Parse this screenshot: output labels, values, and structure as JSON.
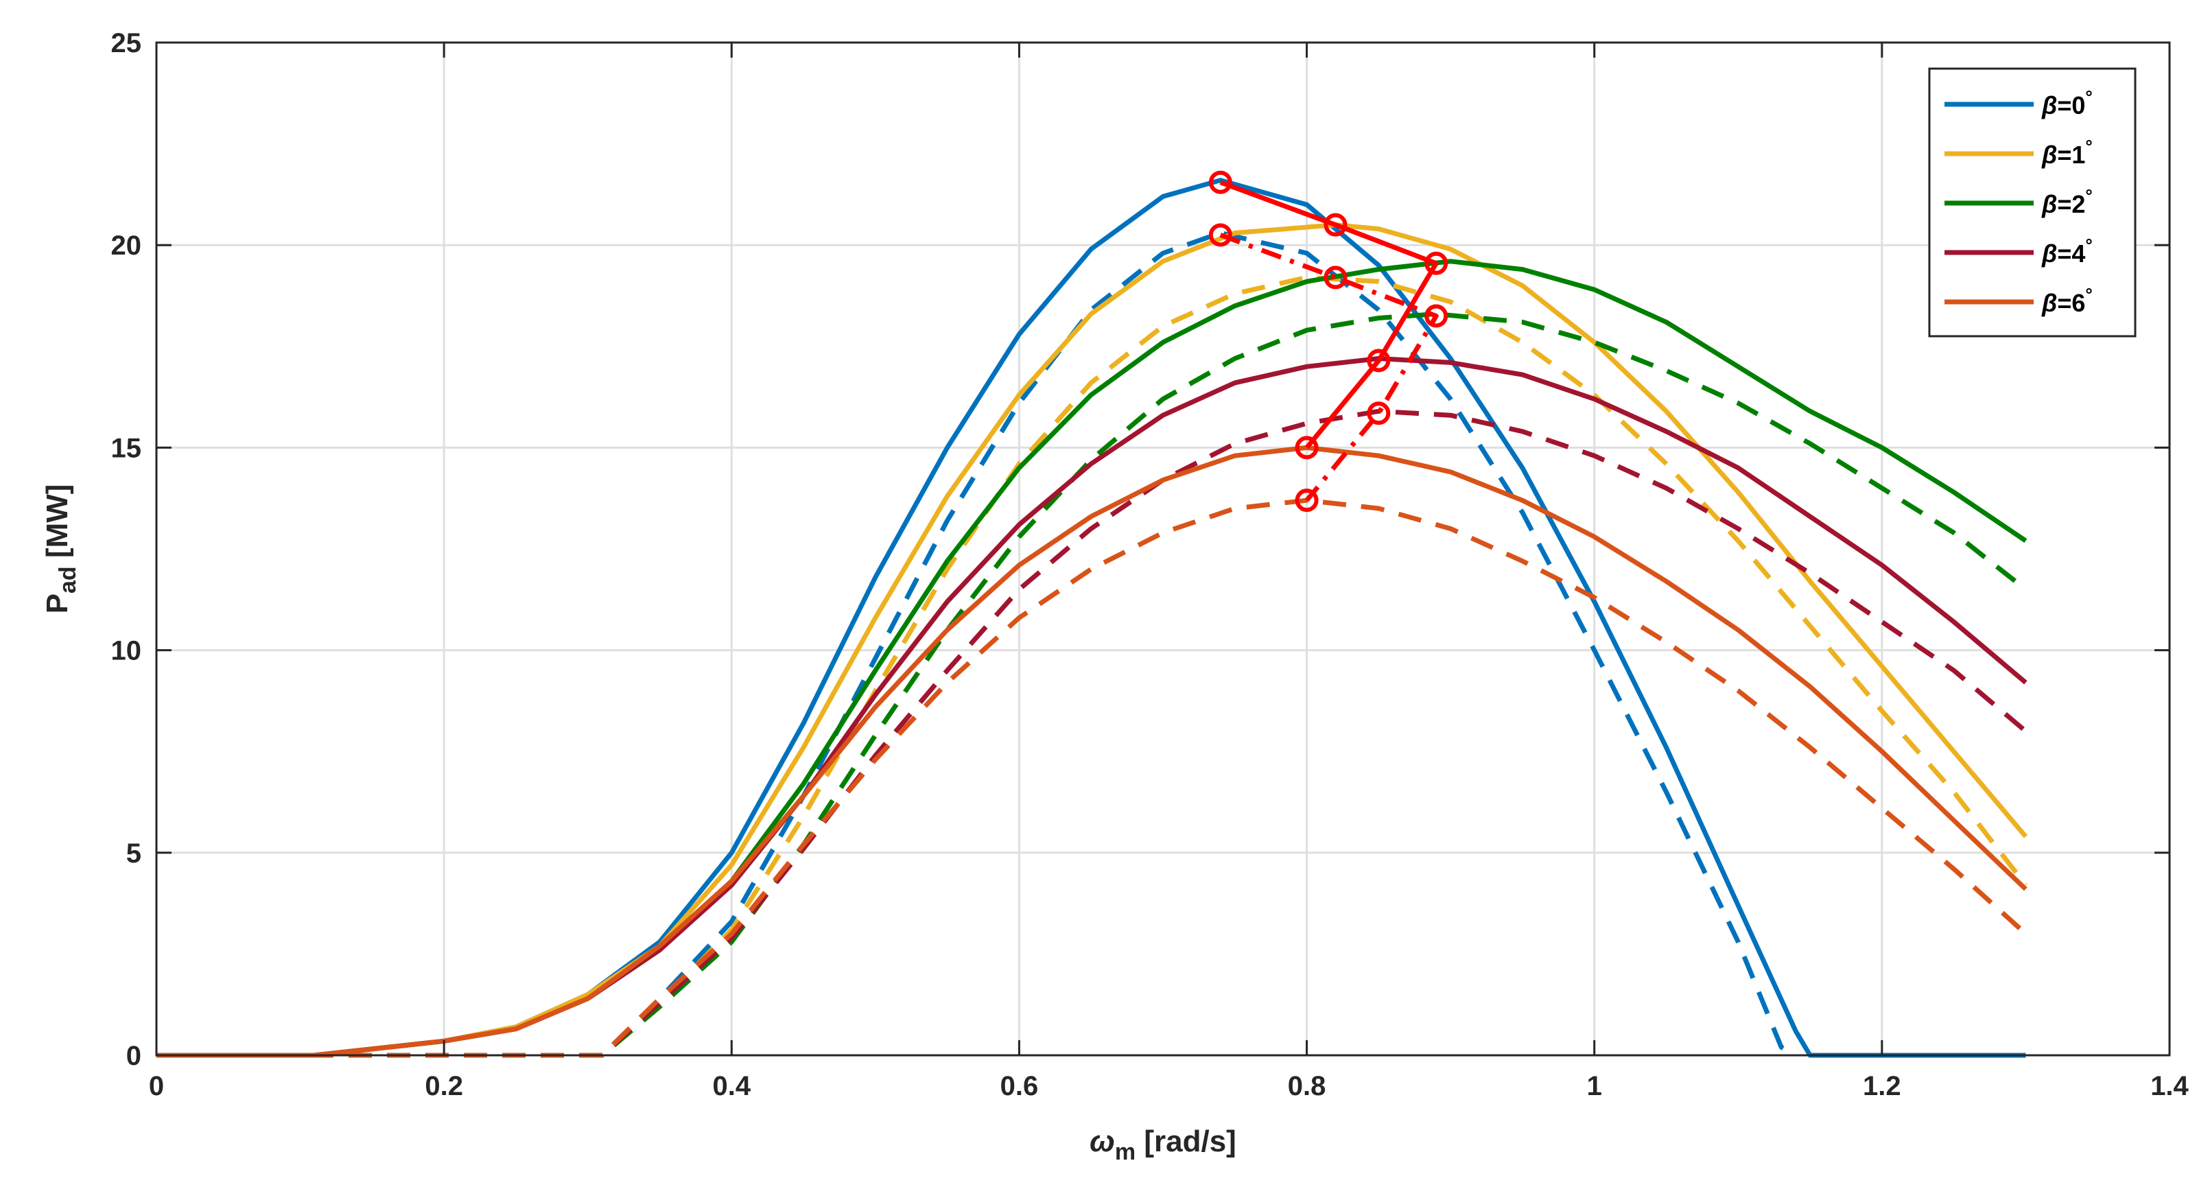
{
  "chart_data": {
    "type": "line",
    "title": "",
    "xlabel": "ω_m [rad/s]",
    "xlabel_symbol": "ω",
    "xlabel_sub": "m",
    "xlabel_unit": "[rad/s]",
    "ylabel": "P_ad [MW]",
    "ylabel_main": "P",
    "ylabel_sub": "ad",
    "ylabel_unit": "[MW]",
    "xlim": [
      0,
      1.4
    ],
    "ylim": [
      0,
      25
    ],
    "xticks": [
      0,
      0.2,
      0.4,
      0.6,
      0.8,
      1,
      1.2,
      1.4
    ],
    "xtick_labels": [
      "0",
      "0.2",
      "0.4",
      "0.6",
      "0.8",
      "1",
      "1.2",
      "1.4"
    ],
    "yticks": [
      0,
      5,
      10,
      15,
      20,
      25
    ],
    "ytick_labels": [
      "0",
      "5",
      "10",
      "15",
      "20",
      "25"
    ],
    "grid": true,
    "legend_position": "top-right",
    "legend": [
      {
        "label_prefix": "β",
        "label_value": "=0",
        "label_degree": "°",
        "color": "#0072BD"
      },
      {
        "label_prefix": "β",
        "label_value": "=1",
        "label_degree": "°",
        "color": "#EDB120"
      },
      {
        "label_prefix": "β",
        "label_value": "=2",
        "label_degree": "°",
        "color": "#008000"
      },
      {
        "label_prefix": "β",
        "label_value": "=4",
        "label_degree": "°",
        "color": "#A2142F"
      },
      {
        "label_prefix": "β",
        "label_value": "=6",
        "label_degree": "°",
        "color": "#D95319"
      }
    ],
    "series": [
      {
        "name": "β=0° solid",
        "color": "#0072BD",
        "dash": "solid",
        "points": [
          [
            0,
            0
          ],
          [
            0.11,
            0
          ],
          [
            0.2,
            0.35
          ],
          [
            0.25,
            0.7
          ],
          [
            0.3,
            1.5
          ],
          [
            0.35,
            2.8
          ],
          [
            0.4,
            5.0
          ],
          [
            0.45,
            8.2
          ],
          [
            0.5,
            11.8
          ],
          [
            0.55,
            15.0
          ],
          [
            0.6,
            17.8
          ],
          [
            0.65,
            19.9
          ],
          [
            0.7,
            21.2
          ],
          [
            0.74,
            21.6
          ],
          [
            0.8,
            21.0
          ],
          [
            0.85,
            19.5
          ],
          [
            0.9,
            17.2
          ],
          [
            0.95,
            14.5
          ],
          [
            1.0,
            11.2
          ],
          [
            1.05,
            7.6
          ],
          [
            1.1,
            3.7
          ],
          [
            1.14,
            0.6
          ],
          [
            1.15,
            0
          ],
          [
            1.3,
            0
          ]
        ]
      },
      {
        "name": "β=0° dashed",
        "color": "#0072BD",
        "dash": "dashed",
        "points": [
          [
            0,
            0
          ],
          [
            0.31,
            0
          ],
          [
            0.35,
            1.4
          ],
          [
            0.4,
            3.3
          ],
          [
            0.45,
            6.4
          ],
          [
            0.5,
            9.8
          ],
          [
            0.55,
            13.2
          ],
          [
            0.6,
            16.1
          ],
          [
            0.65,
            18.4
          ],
          [
            0.7,
            19.8
          ],
          [
            0.74,
            20.3
          ],
          [
            0.8,
            19.8
          ],
          [
            0.85,
            18.4
          ],
          [
            0.9,
            16.2
          ],
          [
            0.95,
            13.4
          ],
          [
            1.0,
            10.0
          ],
          [
            1.05,
            6.5
          ],
          [
            1.1,
            2.8
          ],
          [
            1.13,
            0.2
          ],
          [
            1.14,
            0
          ]
        ]
      },
      {
        "name": "β=1° solid",
        "color": "#EDB120",
        "dash": "solid",
        "points": [
          [
            0,
            0
          ],
          [
            0.11,
            0
          ],
          [
            0.2,
            0.35
          ],
          [
            0.25,
            0.7
          ],
          [
            0.3,
            1.5
          ],
          [
            0.35,
            2.7
          ],
          [
            0.4,
            4.7
          ],
          [
            0.45,
            7.6
          ],
          [
            0.5,
            10.8
          ],
          [
            0.55,
            13.8
          ],
          [
            0.6,
            16.3
          ],
          [
            0.65,
            18.3
          ],
          [
            0.7,
            19.6
          ],
          [
            0.75,
            20.3
          ],
          [
            0.82,
            20.5
          ],
          [
            0.85,
            20.4
          ],
          [
            0.9,
            19.9
          ],
          [
            0.95,
            19.0
          ],
          [
            1.0,
            17.6
          ],
          [
            1.05,
            15.9
          ],
          [
            1.1,
            13.9
          ],
          [
            1.15,
            11.7
          ],
          [
            1.2,
            9.6
          ],
          [
            1.25,
            7.5
          ],
          [
            1.3,
            5.4
          ]
        ]
      },
      {
        "name": "β=1° dashed",
        "color": "#EDB120",
        "dash": "dashed",
        "points": [
          [
            0,
            0
          ],
          [
            0.31,
            0
          ],
          [
            0.35,
            1.3
          ],
          [
            0.4,
            3.1
          ],
          [
            0.45,
            5.9
          ],
          [
            0.5,
            9.0
          ],
          [
            0.55,
            12.0
          ],
          [
            0.6,
            14.6
          ],
          [
            0.65,
            16.6
          ],
          [
            0.7,
            18.0
          ],
          [
            0.75,
            18.8
          ],
          [
            0.8,
            19.2
          ],
          [
            0.85,
            19.1
          ],
          [
            0.9,
            18.6
          ],
          [
            0.95,
            17.6
          ],
          [
            1.0,
            16.3
          ],
          [
            1.05,
            14.6
          ],
          [
            1.1,
            12.7
          ],
          [
            1.15,
            10.6
          ],
          [
            1.2,
            8.5
          ],
          [
            1.25,
            6.5
          ],
          [
            1.3,
            4.2
          ]
        ]
      },
      {
        "name": "β=2° solid",
        "color": "#008000",
        "dash": "solid",
        "points": [
          [
            0,
            0
          ],
          [
            0.11,
            0
          ],
          [
            0.2,
            0.35
          ],
          [
            0.25,
            0.65
          ],
          [
            0.3,
            1.4
          ],
          [
            0.35,
            2.6
          ],
          [
            0.4,
            4.3
          ],
          [
            0.45,
            6.7
          ],
          [
            0.5,
            9.5
          ],
          [
            0.55,
            12.2
          ],
          [
            0.6,
            14.5
          ],
          [
            0.65,
            16.3
          ],
          [
            0.7,
            17.6
          ],
          [
            0.75,
            18.5
          ],
          [
            0.8,
            19.1
          ],
          [
            0.85,
            19.4
          ],
          [
            0.9,
            19.6
          ],
          [
            0.95,
            19.4
          ],
          [
            1.0,
            18.9
          ],
          [
            1.05,
            18.1
          ],
          [
            1.1,
            17.0
          ],
          [
            1.15,
            15.9
          ],
          [
            1.2,
            15.0
          ],
          [
            1.25,
            13.9
          ],
          [
            1.3,
            12.7
          ]
        ]
      },
      {
        "name": "β=2° dashed",
        "color": "#008000",
        "dash": "dashed",
        "points": [
          [
            0,
            0
          ],
          [
            0.31,
            0
          ],
          [
            0.35,
            1.2
          ],
          [
            0.4,
            2.8
          ],
          [
            0.45,
            5.2
          ],
          [
            0.5,
            7.9
          ],
          [
            0.55,
            10.5
          ],
          [
            0.6,
            12.8
          ],
          [
            0.65,
            14.7
          ],
          [
            0.7,
            16.2
          ],
          [
            0.75,
            17.2
          ],
          [
            0.8,
            17.9
          ],
          [
            0.85,
            18.2
          ],
          [
            0.89,
            18.3
          ],
          [
            0.95,
            18.1
          ],
          [
            1.0,
            17.6
          ],
          [
            1.05,
            16.9
          ],
          [
            1.1,
            16.1
          ],
          [
            1.15,
            15.1
          ],
          [
            1.2,
            14.0
          ],
          [
            1.25,
            12.9
          ],
          [
            1.3,
            11.5
          ]
        ]
      },
      {
        "name": "β=4° solid",
        "color": "#A2142F",
        "dash": "solid",
        "points": [
          [
            0,
            0
          ],
          [
            0.11,
            0
          ],
          [
            0.2,
            0.35
          ],
          [
            0.25,
            0.65
          ],
          [
            0.3,
            1.4
          ],
          [
            0.35,
            2.6
          ],
          [
            0.4,
            4.2
          ],
          [
            0.45,
            6.4
          ],
          [
            0.5,
            8.9
          ],
          [
            0.55,
            11.2
          ],
          [
            0.6,
            13.1
          ],
          [
            0.65,
            14.6
          ],
          [
            0.7,
            15.8
          ],
          [
            0.75,
            16.6
          ],
          [
            0.8,
            17.0
          ],
          [
            0.85,
            17.2
          ],
          [
            0.9,
            17.1
          ],
          [
            0.95,
            16.8
          ],
          [
            1.0,
            16.2
          ],
          [
            1.05,
            15.4
          ],
          [
            1.1,
            14.5
          ],
          [
            1.15,
            13.3
          ],
          [
            1.2,
            12.1
          ],
          [
            1.25,
            10.7
          ],
          [
            1.3,
            9.2
          ]
        ]
      },
      {
        "name": "β=4° dashed",
        "color": "#A2142F",
        "dash": "dashed",
        "points": [
          [
            0,
            0
          ],
          [
            0.31,
            0
          ],
          [
            0.35,
            1.3
          ],
          [
            0.4,
            2.9
          ],
          [
            0.45,
            5.1
          ],
          [
            0.5,
            7.4
          ],
          [
            0.55,
            9.5
          ],
          [
            0.6,
            11.5
          ],
          [
            0.65,
            13.0
          ],
          [
            0.7,
            14.2
          ],
          [
            0.75,
            15.1
          ],
          [
            0.8,
            15.6
          ],
          [
            0.85,
            15.9
          ],
          [
            0.9,
            15.8
          ],
          [
            0.95,
            15.4
          ],
          [
            1.0,
            14.8
          ],
          [
            1.05,
            14.0
          ],
          [
            1.1,
            13.0
          ],
          [
            1.15,
            11.9
          ],
          [
            1.2,
            10.7
          ],
          [
            1.25,
            9.5
          ],
          [
            1.3,
            8.0
          ]
        ]
      },
      {
        "name": "β=6° solid",
        "color": "#D95319",
        "dash": "solid",
        "points": [
          [
            0,
            0
          ],
          [
            0.11,
            0
          ],
          [
            0.2,
            0.35
          ],
          [
            0.25,
            0.65
          ],
          [
            0.3,
            1.4
          ],
          [
            0.35,
            2.7
          ],
          [
            0.4,
            4.3
          ],
          [
            0.45,
            6.4
          ],
          [
            0.5,
            8.6
          ],
          [
            0.55,
            10.5
          ],
          [
            0.6,
            12.1
          ],
          [
            0.65,
            13.3
          ],
          [
            0.7,
            14.2
          ],
          [
            0.75,
            14.8
          ],
          [
            0.8,
            15.0
          ],
          [
            0.85,
            14.8
          ],
          [
            0.9,
            14.4
          ],
          [
            0.95,
            13.7
          ],
          [
            1.0,
            12.8
          ],
          [
            1.05,
            11.7
          ],
          [
            1.1,
            10.5
          ],
          [
            1.15,
            9.1
          ],
          [
            1.2,
            7.5
          ],
          [
            1.25,
            5.8
          ],
          [
            1.3,
            4.1
          ]
        ]
      },
      {
        "name": "β=6° dashed",
        "color": "#D95319",
        "dash": "dashed",
        "points": [
          [
            0,
            0
          ],
          [
            0.31,
            0
          ],
          [
            0.35,
            1.4
          ],
          [
            0.4,
            3.0
          ],
          [
            0.45,
            5.2
          ],
          [
            0.5,
            7.3
          ],
          [
            0.55,
            9.2
          ],
          [
            0.6,
            10.8
          ],
          [
            0.65,
            12.0
          ],
          [
            0.7,
            12.9
          ],
          [
            0.75,
            13.5
          ],
          [
            0.8,
            13.7
          ],
          [
            0.85,
            13.5
          ],
          [
            0.9,
            13.0
          ],
          [
            0.95,
            12.2
          ],
          [
            1.0,
            11.3
          ],
          [
            1.05,
            10.2
          ],
          [
            1.1,
            9.0
          ],
          [
            1.15,
            7.6
          ],
          [
            1.2,
            6.1
          ],
          [
            1.25,
            4.6
          ],
          [
            1.3,
            3.0
          ]
        ]
      },
      {
        "name": "optimum locus solid",
        "color": "#FF0000",
        "dash": "solid",
        "markers": true,
        "points": [
          [
            0.74,
            21.55
          ],
          [
            0.82,
            20.5
          ],
          [
            0.89,
            19.55
          ],
          [
            0.85,
            17.15
          ],
          [
            0.8,
            15.0
          ]
        ]
      },
      {
        "name": "optimum locus dashed",
        "color": "#FF0000",
        "dash": "dashdot",
        "markers": true,
        "points": [
          [
            0.74,
            20.25
          ],
          [
            0.82,
            19.2
          ],
          [
            0.89,
            18.25
          ],
          [
            0.85,
            15.85
          ],
          [
            0.8,
            13.7
          ]
        ]
      }
    ]
  }
}
